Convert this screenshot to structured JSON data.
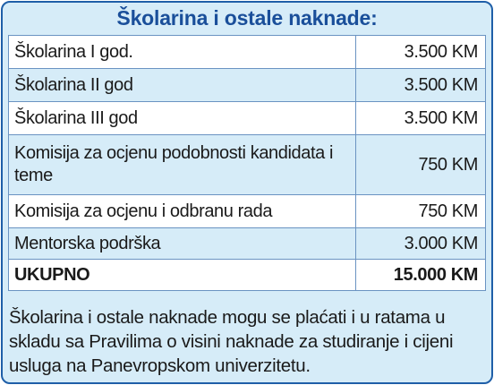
{
  "header": {
    "title": "Školarina i ostale naknade:"
  },
  "fees": {
    "rows": [
      {
        "label": "Školarina I god.",
        "amount": "3.500 KM"
      },
      {
        "label": "Školarina II god",
        "amount": "3.500 KM"
      },
      {
        "label": "Školarina III god",
        "amount": "3.500 KM"
      },
      {
        "label": "Komisija za ocjenu podobnosti kandidata i teme",
        "amount": "750 KM"
      },
      {
        "label": "Komisija za ocjenu i odbranu rada",
        "amount": "750 KM"
      },
      {
        "label": "Mentorska podrška",
        "amount": "3.000 KM"
      }
    ],
    "total": {
      "label": "UKUPNO",
      "amount": "15.000 KM"
    }
  },
  "note": {
    "text": "Školarina i ostale naknade mogu se plaćati i u ratama u skladu sa Pravilima o visini naknade za studiranje i cijeni usluga na Panevropskom univerzitetu."
  },
  "colors": {
    "border": "#1f5fa8",
    "title": "#1a4f9a",
    "background": "#d6ecf8",
    "row_alt": "#ffffff"
  }
}
